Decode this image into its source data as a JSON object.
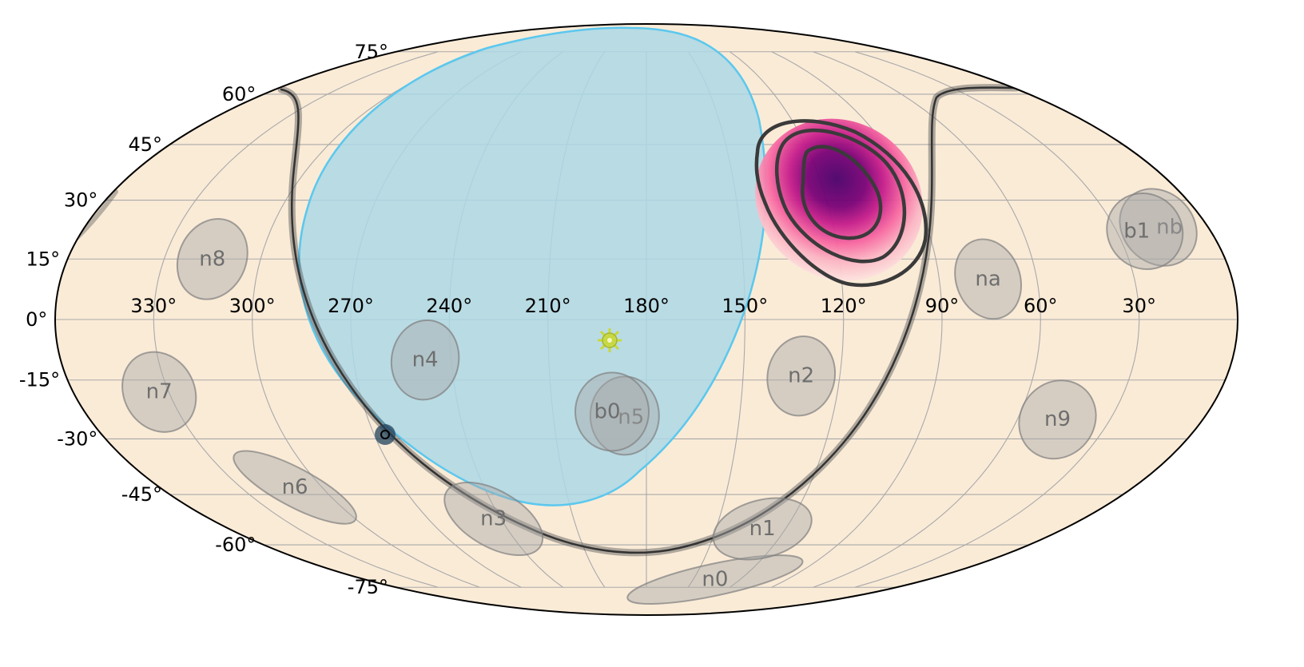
{
  "projection": "mollweide",
  "colors": {
    "background": "#faebd7",
    "outline": "#000000",
    "grid": "#a9a9a9",
    "earth_occultation_fill": "#add8e6",
    "earth_occultation_edge": "#5bc8ee",
    "detector_fill": "#a9a9a9",
    "detector_label": "#6e6e6e",
    "galactic_plane": "#555555",
    "localization_colormap": "RdPu",
    "contour": "#3a3a3a",
    "sun": "#c8d83a",
    "source_marker": "#20425c"
  },
  "axes": {
    "longitude_labels": [
      "330°",
      "300°",
      "270°",
      "240°",
      "210°",
      "180°",
      "150°",
      "120°",
      "90°",
      "60°",
      "30°"
    ],
    "longitude_values": [
      330,
      300,
      270,
      240,
      210,
      180,
      150,
      120,
      90,
      60,
      30
    ],
    "latitude_labels": [
      "75°",
      "60°",
      "45°",
      "30°",
      "15°",
      "0°",
      "-15°",
      "-30°",
      "-45°",
      "-60°",
      "-75°"
    ],
    "latitude_values": [
      75,
      60,
      45,
      30,
      15,
      0,
      -15,
      -30,
      -45,
      -60,
      -75
    ]
  },
  "localization": {
    "ra": 118,
    "dec": 29,
    "contour_levels": [
      "50%",
      "90%",
      "99%"
    ]
  },
  "sun": {
    "ra": 193,
    "dec": -5,
    "icon": "sun-icon"
  },
  "earth_occultation": {
    "ra": 196,
    "dec": 13,
    "radius_deg": 67
  },
  "source_marker": {
    "ra": 265,
    "dec": -27
  },
  "detectors": [
    {
      "name": "n0",
      "ra": 136,
      "dec": -72
    },
    {
      "name": "n1",
      "ra": 130,
      "dec": -55
    },
    {
      "name": "n2",
      "ra": 132,
      "dec": -14
    },
    {
      "name": "n3",
      "ra": 243,
      "dec": -52
    },
    {
      "name": "n4",
      "ra": 248,
      "dec": -10
    },
    {
      "name": "n5",
      "ra": 187,
      "dec": -24
    },
    {
      "name": "n6",
      "ra": 310,
      "dec": -43
    },
    {
      "name": "n7",
      "ra": 333,
      "dec": -18
    },
    {
      "name": "n8",
      "ra": 315,
      "dec": 15
    },
    {
      "name": "n9",
      "ra": 47,
      "dec": -25
    },
    {
      "name": "na",
      "ra": 75,
      "dec": 10
    },
    {
      "name": "nb",
      "ra": 16,
      "dec": 23
    },
    {
      "name": "b0",
      "ra": 191,
      "dec": -23
    },
    {
      "name": "b1",
      "ra": 21,
      "dec": 22
    }
  ]
}
